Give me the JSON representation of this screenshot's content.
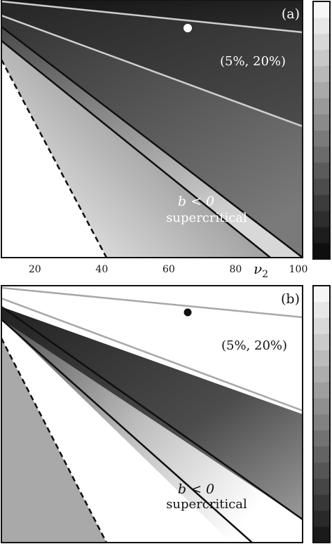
{
  "chart_data": [
    {
      "type": "heatmap",
      "panel_label": "(a)",
      "x_ticks": [
        "20",
        "40",
        "60",
        "80",
        "100"
      ],
      "x_tick_values": [
        20,
        40,
        60,
        80,
        100
      ],
      "xlabel": "ν",
      "xlabel_subscript": "2",
      "xlim": [
        10,
        100
      ],
      "ylim": [
        0,
        1
      ],
      "annotation_percent": "(5%, 20%)",
      "annotation_region": "b < 0",
      "annotation_region_sub": "supercritical",
      "marker": {
        "x": 65,
        "y": 0.9,
        "color": "#ffffff"
      },
      "colorbar_colors": [
        "#0e0e0e",
        "#f6f6f6"
      ],
      "colorbar_steps": 16,
      "colors": {
        "dark": "#111111",
        "mid": "#5a5a5a",
        "light": "#f2f2f2",
        "gray_line": "#c8c8c8",
        "black_line": "#111111"
      }
    },
    {
      "type": "heatmap",
      "panel_label": "(b)",
      "x_ticks": [],
      "xlim": [
        10,
        100
      ],
      "ylim": [
        0,
        1
      ],
      "annotation_percent": "(5%, 20%)",
      "annotation_region": "b < 0",
      "annotation_region_sub": "supercritical",
      "marker": {
        "x": 65,
        "y": 0.9,
        "color": "#111111"
      },
      "colorbar_colors": [
        "#1a1a1a",
        "#f6f6f6"
      ],
      "colorbar_steps": 16,
      "colors": {
        "dark": "#2a2a2a",
        "mid": "#6a6a6a",
        "light": "#ffffff",
        "gray_fill": "#a8a8a8",
        "gray_line": "#a8a8a8",
        "black_line": "#111111"
      }
    }
  ]
}
